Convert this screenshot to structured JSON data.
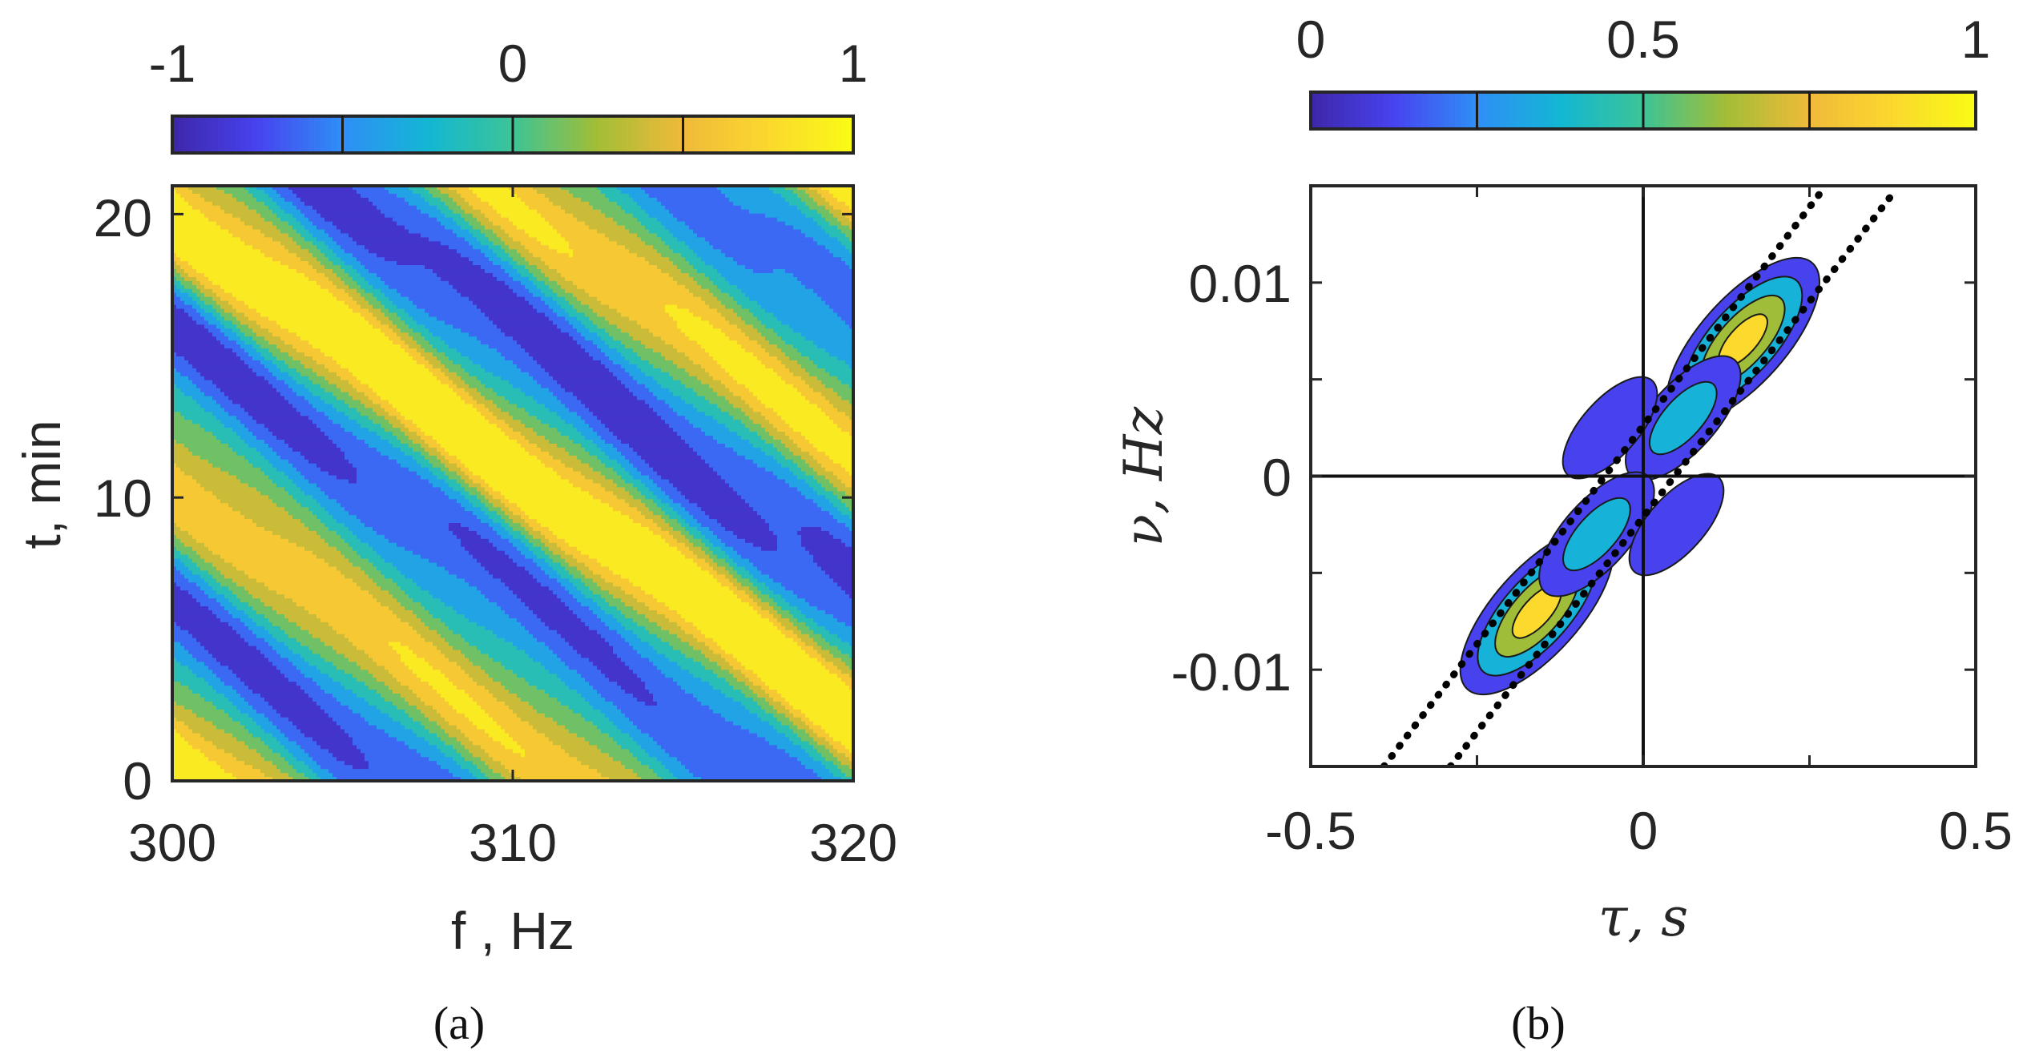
{
  "chart_data": [
    {
      "panel": "(a)",
      "type": "heatmap",
      "subtype": "filled contour",
      "xlabel": "f , Hz",
      "ylabel": "t, min",
      "xlim": [
        300,
        320
      ],
      "ylim": [
        0,
        21
      ],
      "xticks": [
        "300",
        "310",
        "320"
      ],
      "yticks": [
        "0",
        "10",
        "20"
      ],
      "xtick_values": [
        300,
        310,
        320
      ],
      "ytick_values": [
        0,
        10,
        20
      ],
      "colorbar": {
        "range": [
          -1,
          1
        ],
        "ticks": [
          "-1",
          "0",
          "1"
        ],
        "tick_values": [
          -1,
          0,
          1
        ],
        "levels": [
          -1,
          -0.5,
          0,
          0.5,
          1
        ]
      },
      "field": {
        "description": "oscillating interference pattern with striations tilted downward to the right",
        "spatial_period_min": 9.5,
        "slope_min_per_hz": -0.9,
        "amplitude": 1
      }
    },
    {
      "panel": "(b)",
      "type": "heatmap",
      "subtype": "filled contour",
      "xlabel": "τ, s",
      "ylabel": "ν, Hz",
      "xlim": [
        -0.5,
        0.5
      ],
      "ylim": [
        -0.015,
        0.015
      ],
      "xticks": [
        "-0.5",
        "0",
        "0.5"
      ],
      "yticks": [
        "-0.01",
        "0",
        "0.01"
      ],
      "xtick_values": [
        -0.5,
        0,
        0.5
      ],
      "ytick_values": [
        -0.01,
        0,
        0.01
      ],
      "colorbar": {
        "range": [
          0,
          1
        ],
        "ticks": [
          "0",
          "0.5",
          "1"
        ],
        "tick_values": [
          0,
          0.5,
          1
        ],
        "levels": [
          0,
          0.25,
          0.5,
          0.75,
          1
        ]
      },
      "peaks": [
        {
          "tau": 0.15,
          "nu": 0.007,
          "value": 1.0
        },
        {
          "tau": -0.16,
          "nu": -0.007,
          "value": 1.0
        },
        {
          "tau": 0.06,
          "nu": 0.003,
          "value": 0.45
        },
        {
          "tau": -0.07,
          "nu": -0.003,
          "value": 0.45
        },
        {
          "tau": -0.05,
          "nu": 0.0025,
          "value": 0.15
        },
        {
          "tau": 0.05,
          "nu": -0.0025,
          "value": 0.15
        }
      ],
      "guide_lines": {
        "style": "dotted",
        "lines": [
          {
            "from": [
              -0.39,
              -0.015
            ],
            "to": [
              0.27,
              0.0148
            ]
          },
          {
            "from": [
              -0.29,
              -0.015
            ],
            "to": [
              0.38,
              0.0148
            ]
          }
        ]
      },
      "zero_lines": {
        "vertical_at_tau": 0,
        "horizontal_at_nu": 0
      }
    }
  ],
  "captions": {
    "a": "(a)",
    "b": "(b)"
  },
  "colors": {
    "parula": [
      "#3e26a8",
      "#4743f0",
      "#2f8ef6",
      "#13b7d4",
      "#3cc496",
      "#a3bd35",
      "#f0ba3a",
      "#fbd82e",
      "#f9fb15"
    ],
    "axis": "#262626",
    "contour_line": "#1a1a1a"
  }
}
